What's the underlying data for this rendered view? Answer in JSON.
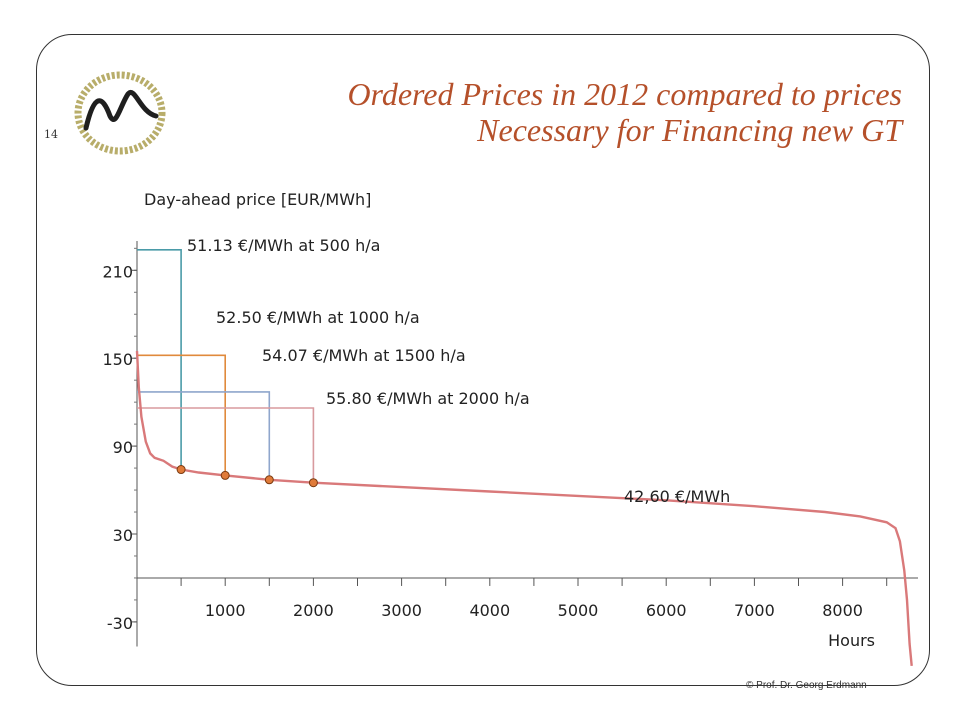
{
  "slide": {
    "number": "14",
    "title_line1": "Ordered Prices in 2012 compared to prices",
    "title_line2": "Necessary for Financing new GT",
    "copyright": "© Prof. Dr. Georg Erdmann"
  },
  "colors": {
    "title": "#b5502a",
    "curve": "#d9797a",
    "series_500": "#4a9ba8",
    "series_1000": "#e08a3c",
    "series_1500": "#8fa6cc",
    "series_2000": "#d89a9e",
    "marker": "#e07b39"
  },
  "chart_data": {
    "type": "line",
    "ylabel": "Day-ahead price [EUR/MWh]",
    "xlabel": "Hours",
    "x_ticks": [
      1000,
      2000,
      3000,
      4000,
      5000,
      6000,
      7000,
      8000
    ],
    "y_ticks": [
      -30,
      30,
      90,
      150,
      210
    ],
    "ylim": [
      -40,
      230
    ],
    "xlim": [
      0,
      8784
    ],
    "curve": {
      "x": [
        0,
        20,
        50,
        100,
        150,
        200,
        300,
        400,
        500,
        700,
        1000,
        1500,
        2000,
        3000,
        4000,
        5000,
        6000,
        7000,
        7800,
        8200,
        8500,
        8600,
        8650,
        8700,
        8730,
        8760,
        8784
      ],
      "y": [
        155,
        130,
        110,
        93,
        85,
        82,
        80,
        76,
        74,
        72,
        70,
        67,
        65,
        62,
        59,
        56,
        53,
        49,
        45,
        42,
        38,
        34,
        25,
        5,
        -15,
        -45,
        -60
      ]
    },
    "average_label": "42,60 €/MWh",
    "annotations": [
      {
        "label": "51.13 €/MWh at 500 h/a",
        "hours": 500,
        "level": 224,
        "crossing": 74
      },
      {
        "label": "52.50 €/MWh at 1000 h/a",
        "hours": 1000,
        "level": 152,
        "crossing": 70
      },
      {
        "label": "54.07 €/MWh at 1500 h/a",
        "hours": 1500,
        "level": 127,
        "crossing": 67
      },
      {
        "label": "55.80 €/MWh at 2000 h/a",
        "hours": 2000,
        "level": 116,
        "crossing": 65
      }
    ]
  }
}
